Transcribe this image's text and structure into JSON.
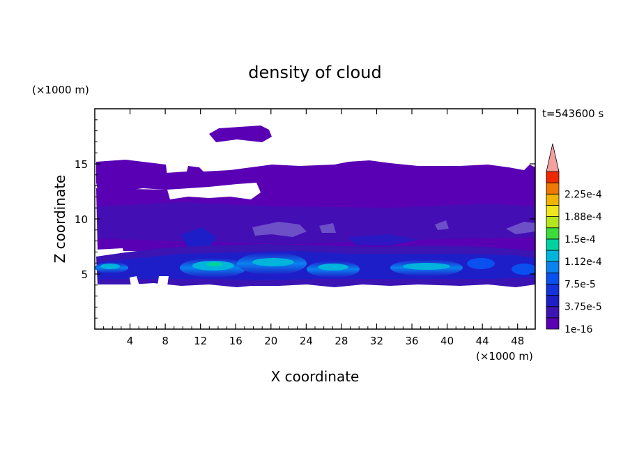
{
  "chart_data": {
    "type": "heatmap",
    "title": "density of cloud",
    "xlabel": "X coordinate",
    "ylabel": "Z coordinate",
    "x_unit": "(×1000 m)",
    "y_unit": "(×1000 m)",
    "time_label": "t=543600 s",
    "xlim": [
      0,
      50
    ],
    "ylim": [
      0,
      20
    ],
    "x_ticks": [
      "4",
      "8",
      "12",
      "16",
      "20",
      "24",
      "28",
      "32",
      "36",
      "40",
      "44",
      "48"
    ],
    "y_ticks": [
      "5",
      "10",
      "15"
    ],
    "colorbar": {
      "levels": [
        "1e-16",
        "",
        "3.75e-5",
        "",
        "7.5e-5",
        "",
        "1.12e-4",
        "",
        "1.5e-4",
        "",
        "1.88e-4",
        "",
        "2.25e-4",
        ""
      ],
      "colors": [
        "#5a00b4",
        "#3c14b4",
        "#1e1ec8",
        "#1432dc",
        "#0a50f0",
        "#0a82f0",
        "#00b4dc",
        "#00d2a0",
        "#3cdc3c",
        "#b4e61e",
        "#f0e61e",
        "#f0b400",
        "#f07800",
        "#f02800"
      ],
      "extend_color": "#f4a0a0"
    },
    "regions": {
      "upper_cloud": {
        "x": [
          1,
          49.5
        ],
        "z": [
          9.5,
          15.3
        ]
      },
      "top_patch": {
        "x": [
          13,
          20
        ],
        "z": [
          17,
          18.5
        ]
      },
      "lower_band": {
        "x": [
          0,
          49.5
        ],
        "z": [
          4.3,
          8
        ]
      }
    }
  }
}
